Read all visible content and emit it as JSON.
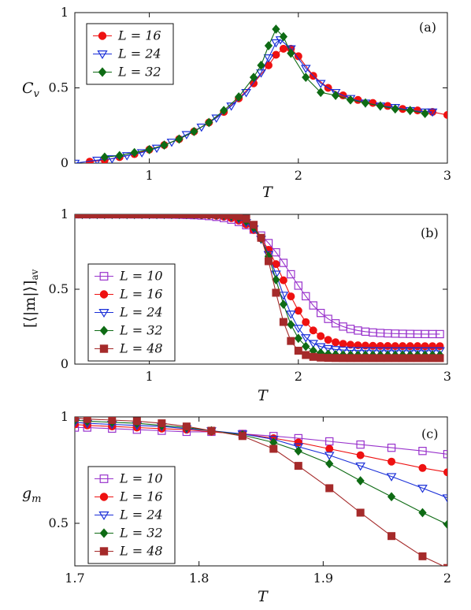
{
  "chart_data": [
    {
      "type": "line",
      "panel_label": "(a)",
      "xlabel": "T",
      "ylabel": "C_v",
      "ylabel_main": "C",
      "ylabel_sub": "v",
      "xlim": [
        0.5,
        3.0
      ],
      "ylim": [
        0,
        1
      ],
      "xticks": [
        1,
        2,
        3
      ],
      "yticks": [
        0,
        0.5,
        1
      ],
      "ytick_labels": [
        "0",
        "0.5",
        "1"
      ],
      "xtick_labels": [
        "1",
        "2",
        "3"
      ],
      "legend_position": "top-left",
      "series": [
        {
          "name": "L = 16",
          "marker": "circle",
          "color": "#ee1111",
          "x": [
            0.6,
            0.7,
            0.8,
            0.9,
            1.0,
            1.1,
            1.2,
            1.3,
            1.4,
            1.5,
            1.6,
            1.7,
            1.8,
            1.85,
            1.9,
            1.95,
            2.0,
            2.1,
            2.2,
            2.3,
            2.4,
            2.5,
            2.6,
            2.7,
            2.8,
            2.9,
            3.0
          ],
          "y": [
            0.01,
            0.02,
            0.04,
            0.06,
            0.09,
            0.12,
            0.16,
            0.21,
            0.27,
            0.34,
            0.43,
            0.53,
            0.65,
            0.72,
            0.76,
            0.76,
            0.71,
            0.58,
            0.5,
            0.45,
            0.42,
            0.4,
            0.38,
            0.36,
            0.35,
            0.34,
            0.32
          ]
        },
        {
          "name": "L = 24",
          "marker": "triangle-down",
          "color": "#1a2fd8",
          "x": [
            0.5,
            0.65,
            0.75,
            0.85,
            0.95,
            1.05,
            1.15,
            1.25,
            1.35,
            1.45,
            1.55,
            1.65,
            1.75,
            1.8,
            1.85,
            1.88,
            1.95,
            2.05,
            2.15,
            2.25,
            2.35,
            2.45,
            2.55,
            2.65,
            2.75,
            2.85,
            2.9
          ],
          "y": [
            0.0,
            0.02,
            0.03,
            0.05,
            0.07,
            0.1,
            0.14,
            0.19,
            0.24,
            0.3,
            0.38,
            0.47,
            0.6,
            0.7,
            0.8,
            0.82,
            0.76,
            0.63,
            0.53,
            0.47,
            0.43,
            0.4,
            0.38,
            0.37,
            0.35,
            0.34,
            0.34
          ]
        },
        {
          "name": "L = 32",
          "marker": "diamond",
          "color": "#0e6b14",
          "x": [
            0.7,
            0.8,
            0.9,
            1.0,
            1.1,
            1.2,
            1.3,
            1.4,
            1.5,
            1.6,
            1.7,
            1.75,
            1.8,
            1.85,
            1.9,
            1.95,
            2.05,
            2.15,
            2.25,
            2.35,
            2.45,
            2.55,
            2.65,
            2.75,
            2.85
          ],
          "y": [
            0.04,
            0.05,
            0.07,
            0.09,
            0.12,
            0.16,
            0.21,
            0.27,
            0.35,
            0.44,
            0.57,
            0.65,
            0.78,
            0.89,
            0.84,
            0.73,
            0.57,
            0.47,
            0.45,
            0.42,
            0.4,
            0.38,
            0.36,
            0.35,
            0.33
          ]
        }
      ]
    },
    {
      "type": "line",
      "panel_label": "(b)",
      "xlabel": "T",
      "ylabel": "[⟨|m|⟩]av",
      "ylabel_main": "[⟨|m|⟩]",
      "ylabel_sub": "av",
      "xlim": [
        0.5,
        3.0
      ],
      "ylim": [
        0,
        1
      ],
      "xticks": [
        1,
        2,
        3
      ],
      "yticks": [
        0,
        0.5,
        1
      ],
      "ytick_labels": [
        "0",
        "0.5",
        "1"
      ],
      "xtick_labels": [
        "1",
        "2",
        "3"
      ],
      "legend_position": "left-center",
      "x_range": [
        0.5,
        2.95
      ],
      "x_step": 0.05,
      "series": [
        {
          "name": "L = 10",
          "marker": "square-open",
          "color": "#9933cc",
          "Tc": 1.95,
          "w": 0.26,
          "floor": 0.2
        },
        {
          "name": "L = 16",
          "marker": "circle",
          "color": "#ee1111",
          "Tc": 1.9,
          "w": 0.2,
          "floor": 0.12
        },
        {
          "name": "L = 24",
          "marker": "triangle-down",
          "color": "#1a2fd8",
          "Tc": 1.87,
          "w": 0.16,
          "floor": 0.09
        },
        {
          "name": "L = 32",
          "marker": "diamond",
          "color": "#0e6b14",
          "Tc": 1.86,
          "w": 0.14,
          "floor": 0.06
        },
        {
          "name": "L = 48",
          "marker": "square",
          "color": "#a52a2a",
          "Tc": 1.84,
          "w": 0.11,
          "floor": 0.04
        }
      ]
    },
    {
      "type": "line",
      "panel_label": "(c)",
      "xlabel": "T",
      "ylabel": "g_m",
      "ylabel_main": "g",
      "ylabel_sub": "m",
      "xlim": [
        1.7,
        2.0
      ],
      "ylim": [
        0.3,
        1.0
      ],
      "xticks": [
        1.7,
        1.8,
        1.9,
        2.0
      ],
      "yticks": [
        0.5,
        1.0
      ],
      "ytick_labels": [
        "0.5",
        "1"
      ],
      "xtick_labels": [
        "1.7",
        "1.8",
        "1.9",
        "2"
      ],
      "legend_position": "left-bottom",
      "series": [
        {
          "name": "L = 10",
          "marker": "square-open",
          "color": "#9933cc",
          "x": [
            1.7,
            1.71,
            1.73,
            1.75,
            1.77,
            1.79,
            1.81,
            1.835,
            1.86,
            1.88,
            1.905,
            1.93,
            1.955,
            1.98,
            2.0
          ],
          "y": [
            0.95,
            0.95,
            0.945,
            0.94,
            0.935,
            0.93,
            0.93,
            0.92,
            0.91,
            0.9,
            0.885,
            0.87,
            0.855,
            0.84,
            0.825
          ]
        },
        {
          "name": "L = 16",
          "marker": "circle",
          "color": "#ee1111",
          "x": [
            1.7,
            1.71,
            1.73,
            1.75,
            1.77,
            1.79,
            1.81,
            1.835,
            1.86,
            1.88,
            1.905,
            1.93,
            1.955,
            1.98,
            2.0
          ],
          "y": [
            0.965,
            0.96,
            0.955,
            0.95,
            0.945,
            0.94,
            0.93,
            0.92,
            0.9,
            0.88,
            0.85,
            0.82,
            0.79,
            0.76,
            0.74
          ]
        },
        {
          "name": "L = 24",
          "marker": "triangle-down",
          "color": "#1a2fd8",
          "x": [
            1.7,
            1.71,
            1.73,
            1.75,
            1.77,
            1.79,
            1.81,
            1.835,
            1.86,
            1.88,
            1.905,
            1.93,
            1.955,
            1.98,
            2.0
          ],
          "y": [
            0.975,
            0.97,
            0.965,
            0.96,
            0.955,
            0.945,
            0.935,
            0.92,
            0.895,
            0.86,
            0.82,
            0.77,
            0.72,
            0.665,
            0.62
          ]
        },
        {
          "name": "L = 32",
          "marker": "diamond",
          "color": "#0e6b14",
          "x": [
            1.7,
            1.71,
            1.73,
            1.75,
            1.77,
            1.79,
            1.81,
            1.835,
            1.86,
            1.88,
            1.905,
            1.93,
            1.955,
            1.98,
            2.0
          ],
          "y": [
            0.985,
            0.98,
            0.975,
            0.97,
            0.96,
            0.95,
            0.935,
            0.915,
            0.88,
            0.84,
            0.78,
            0.7,
            0.625,
            0.55,
            0.495
          ]
        },
        {
          "name": "L = 48",
          "marker": "square",
          "color": "#a52a2a",
          "x": [
            1.7,
            1.71,
            1.73,
            1.75,
            1.77,
            1.79,
            1.81,
            1.835,
            1.86,
            1.88,
            1.905,
            1.93,
            1.955,
            1.98,
            2.0
          ],
          "y": [
            0.995,
            0.99,
            0.985,
            0.98,
            0.97,
            0.955,
            0.935,
            0.91,
            0.85,
            0.77,
            0.665,
            0.55,
            0.44,
            0.345,
            0.29
          ]
        }
      ]
    }
  ]
}
